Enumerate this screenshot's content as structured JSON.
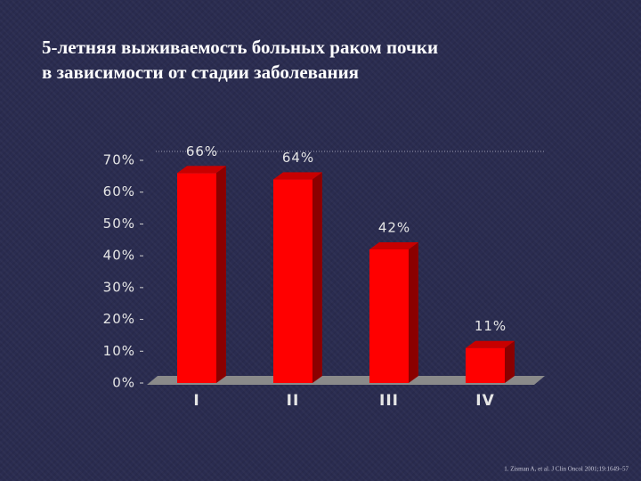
{
  "chart_data": {
    "type": "bar3d",
    "title": [
      "5-летняя выживаемость больных раком почки",
      "в зависимости от стадии заболевания"
    ],
    "categories": [
      "I",
      "II",
      "III",
      "IV"
    ],
    "values": [
      66,
      64,
      42,
      11
    ],
    "value_labels": [
      "66%",
      "64%",
      "42%",
      "11%"
    ],
    "color": "#ff0000",
    "ylim": [
      0,
      70
    ],
    "yticks": [
      {
        "value": 0,
        "label": "0%"
      },
      {
        "value": 10,
        "label": "10%"
      },
      {
        "value": 20,
        "label": "20%"
      },
      {
        "value": 30,
        "label": "30%"
      },
      {
        "value": 40,
        "label": "40%"
      },
      {
        "value": 50,
        "label": "50%"
      },
      {
        "value": 60,
        "label": "60%"
      },
      {
        "value": 70,
        "label": "70%"
      }
    ],
    "source": "1. Zisman A, et al. J Clin Oncol 2001;19:1649–57"
  }
}
